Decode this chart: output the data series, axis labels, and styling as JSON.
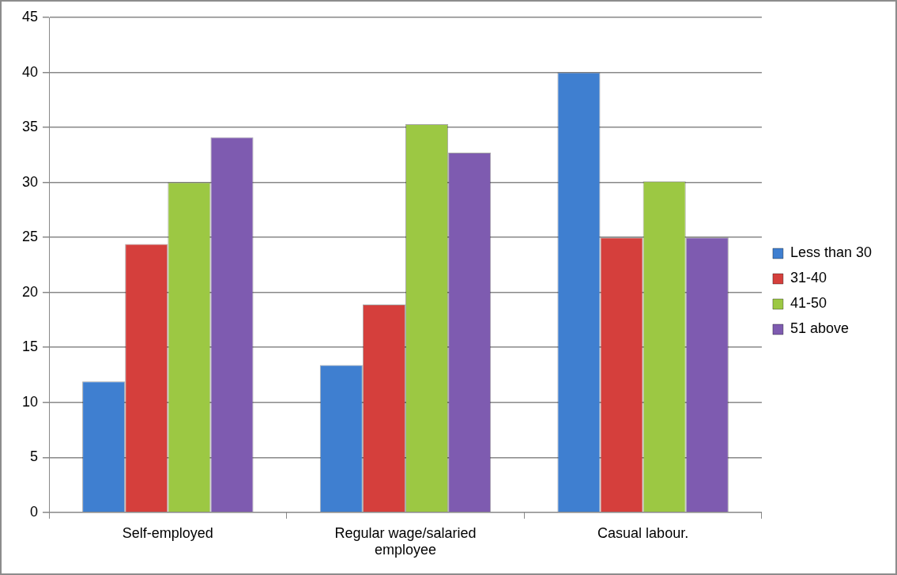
{
  "chart_data": {
    "type": "bar",
    "categories": [
      "Self-employed",
      "Regular wage/salaried employee",
      "Casual labour."
    ],
    "series": [
      {
        "name": "Less than 30",
        "color": "#3f7fd0",
        "values": [
          11.9,
          13.4,
          40
        ]
      },
      {
        "name": "31-40",
        "color": "#d53f3c",
        "values": [
          24.4,
          18.9,
          25
        ]
      },
      {
        "name": "41-50",
        "color": "#9cc843",
        "values": [
          30,
          35.3,
          30.1
        ]
      },
      {
        "name": "51 above",
        "color": "#7e5bb0",
        "values": [
          34.1,
          32.7,
          25
        ]
      }
    ],
    "ylim": [
      0,
      45
    ],
    "yticks": [
      0,
      5,
      10,
      15,
      20,
      25,
      30,
      35,
      40,
      45
    ],
    "grid": "y",
    "legend": "right"
  }
}
